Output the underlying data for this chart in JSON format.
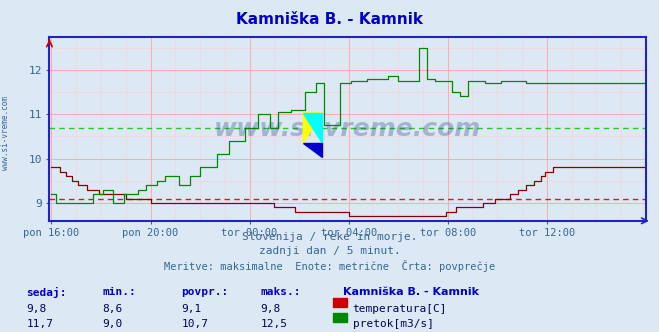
{
  "title": "Kamniška B. - Kamnik",
  "title_color": "#0000cc",
  "bg_color": "#dce9f5",
  "plot_bg_color": "#dce9f5",
  "grid_color_major": "#ffaaaa",
  "grid_color_minor": "#ffcccc",
  "axis_color": "#2222cc",
  "tick_color": "#336699",
  "temp_color": "#880000",
  "flow_color": "#008800",
  "temp_avg_line": 9.1,
  "flow_avg_line": 10.7,
  "temp_avg_color": "#cc2222",
  "flow_avg_color": "#22cc22",
  "x_tick_labels": [
    "pon 16:00",
    "pon 20:00",
    "tor 00:00",
    "tor 04:00",
    "tor 08:00",
    "tor 12:00"
  ],
  "x_tick_positions": [
    0,
    48,
    96,
    144,
    192,
    240
  ],
  "y_left_min": 8.6,
  "y_left_max": 12.75,
  "y_ticks": [
    9,
    10,
    11,
    12
  ],
  "n_points": 288,
  "subtitle1": "Slovenija / reke in morje.",
  "subtitle2": "zadnji dan / 5 minut.",
  "subtitle3": "Meritve: maksimalne  Enote: metrične  Črta: povprečje",
  "subtitle_color": "#336699",
  "table_headers": [
    "sedaj:",
    "min.:",
    "povpr.:",
    "maks.:"
  ],
  "table_header_color": "#0000cc",
  "table_row1": [
    "9,8",
    "8,6",
    "9,1",
    "9,8"
  ],
  "table_row2": [
    "11,7",
    "9,0",
    "10,7",
    "12,5"
  ],
  "table_color": "#000066",
  "station_label": "Kamniška B. - Kamnik",
  "legend_label1": "temperatura[C]",
  "legend_label2": "pretok[m3/s]",
  "watermark": "www.si-vreme.com",
  "watermark_color": "#1a3a8a",
  "left_label": "www.si-vreme.com",
  "left_label_color": "#336699",
  "temp_data": [
    9.8,
    9.8,
    9.8,
    9.8,
    9.7,
    9.7,
    9.7,
    9.6,
    9.6,
    9.6,
    9.5,
    9.5,
    9.5,
    9.4,
    9.4,
    9.4,
    9.4,
    9.3,
    9.3,
    9.3,
    9.3,
    9.3,
    9.3,
    9.2,
    9.2,
    9.2,
    9.2,
    9.2,
    9.2,
    9.2,
    9.2,
    9.2,
    9.2,
    9.2,
    9.2,
    9.2,
    9.1,
    9.1,
    9.1,
    9.1,
    9.1,
    9.1,
    9.1,
    9.1,
    9.1,
    9.1,
    9.1,
    9.1,
    9.0,
    9.0,
    9.0,
    9.0,
    9.0,
    9.0,
    9.0,
    9.0,
    9.0,
    9.0,
    9.0,
    9.0,
    9.0,
    9.0,
    9.0,
    9.0,
    9.0,
    9.0,
    9.0,
    9.0,
    9.0,
    9.0,
    9.0,
    9.0,
    9.0,
    9.0,
    9.0,
    9.0,
    9.0,
    9.0,
    9.0,
    9.0,
    9.0,
    9.0,
    9.0,
    9.0,
    9.0,
    9.0,
    9.0,
    9.0,
    9.0,
    9.0,
    9.0,
    9.0,
    9.0,
    9.0,
    9.0,
    9.0,
    9.0,
    9.0,
    9.0,
    9.0,
    9.0,
    9.0,
    9.0,
    9.0,
    9.0,
    9.0,
    9.0,
    9.0,
    8.9,
    8.9,
    8.9,
    8.9,
    8.9,
    8.9,
    8.9,
    8.9,
    8.9,
    8.9,
    8.8,
    8.8,
    8.8,
    8.8,
    8.8,
    8.8,
    8.8,
    8.8,
    8.8,
    8.8,
    8.8,
    8.8,
    8.8,
    8.8,
    8.8,
    8.8,
    8.8,
    8.8,
    8.8,
    8.8,
    8.8,
    8.8,
    8.8,
    8.8,
    8.8,
    8.8,
    8.7,
    8.7,
    8.7,
    8.7,
    8.7,
    8.7,
    8.7,
    8.7,
    8.7,
    8.7,
    8.7,
    8.7,
    8.7,
    8.7,
    8.7,
    8.7,
    8.7,
    8.7,
    8.7,
    8.7,
    8.7,
    8.7,
    8.7,
    8.7,
    8.7,
    8.7,
    8.7,
    8.7,
    8.7,
    8.7,
    8.7,
    8.7,
    8.7,
    8.7,
    8.7,
    8.7,
    8.7,
    8.7,
    8.7,
    8.7,
    8.7,
    8.7,
    8.7,
    8.7,
    8.7,
    8.7,
    8.7,
    8.8,
    8.8,
    8.8,
    8.8,
    8.8,
    8.9,
    8.9,
    8.9,
    8.9,
    8.9,
    8.9,
    8.9,
    8.9,
    8.9,
    8.9,
    8.9,
    8.9,
    8.9,
    9.0,
    9.0,
    9.0,
    9.0,
    9.0,
    9.0,
    9.1,
    9.1,
    9.1,
    9.1,
    9.1,
    9.1,
    9.1,
    9.2,
    9.2,
    9.2,
    9.2,
    9.3,
    9.3,
    9.3,
    9.3,
    9.4,
    9.4,
    9.4,
    9.4,
    9.5,
    9.5,
    9.5,
    9.6,
    9.6,
    9.7,
    9.7,
    9.7,
    9.7,
    9.8,
    9.8,
    9.8,
    9.8,
    9.8,
    9.8,
    9.8,
    9.8,
    9.8,
    9.8,
    9.8,
    9.8,
    9.8,
    9.8,
    9.8,
    9.8,
    9.8,
    9.8,
    9.8,
    9.8,
    9.8,
    9.8,
    9.8,
    9.8,
    9.8,
    9.8,
    9.8,
    9.8,
    9.8,
    9.8,
    9.8,
    9.8,
    9.8,
    9.8,
    9.8,
    9.8,
    9.8,
    9.8,
    9.8,
    9.8,
    9.8,
    9.8,
    9.8,
    9.8,
    9.8
  ],
  "flow_data": [
    9.2,
    9.2,
    9.0,
    9.0,
    9.0,
    9.0,
    9.0,
    9.0,
    9.0,
    9.0,
    9.0,
    9.0,
    9.0,
    9.0,
    9.0,
    9.0,
    9.0,
    9.0,
    9.0,
    9.0,
    9.2,
    9.2,
    9.2,
    9.2,
    9.2,
    9.3,
    9.3,
    9.3,
    9.3,
    9.3,
    9.0,
    9.0,
    9.0,
    9.0,
    9.0,
    9.2,
    9.2,
    9.2,
    9.2,
    9.2,
    9.2,
    9.2,
    9.3,
    9.3,
    9.3,
    9.3,
    9.4,
    9.4,
    9.4,
    9.4,
    9.4,
    9.5,
    9.5,
    9.5,
    9.5,
    9.6,
    9.6,
    9.6,
    9.6,
    9.6,
    9.6,
    9.6,
    9.4,
    9.4,
    9.4,
    9.4,
    9.4,
    9.6,
    9.6,
    9.6,
    9.6,
    9.6,
    9.8,
    9.8,
    9.8,
    9.8,
    9.8,
    9.8,
    9.8,
    9.8,
    10.1,
    10.1,
    10.1,
    10.1,
    10.1,
    10.1,
    10.4,
    10.4,
    10.4,
    10.4,
    10.4,
    10.4,
    10.4,
    10.4,
    10.7,
    10.7,
    10.7,
    10.7,
    10.7,
    10.7,
    11.0,
    11.0,
    11.0,
    11.0,
    11.0,
    11.0,
    10.7,
    10.7,
    10.7,
    10.7,
    11.05,
    11.05,
    11.05,
    11.05,
    11.05,
    11.05,
    11.1,
    11.1,
    11.1,
    11.1,
    11.1,
    11.1,
    11.1,
    11.5,
    11.5,
    11.5,
    11.5,
    11.5,
    11.7,
    11.7,
    11.7,
    11.7,
    10.75,
    10.75,
    10.75,
    10.75,
    10.75,
    10.75,
    10.75,
    10.75,
    11.7,
    11.7,
    11.7,
    11.7,
    11.7,
    11.75,
    11.75,
    11.75,
    11.75,
    11.75,
    11.75,
    11.75,
    11.75,
    11.8,
    11.8,
    11.8,
    11.8,
    11.8,
    11.8,
    11.8,
    11.8,
    11.8,
    11.8,
    11.85,
    11.85,
    11.85,
    11.85,
    11.85,
    11.75,
    11.75,
    11.75,
    11.75,
    11.75,
    11.75,
    11.75,
    11.75,
    11.75,
    11.75,
    12.5,
    12.5,
    12.5,
    12.5,
    11.8,
    11.8,
    11.8,
    11.8,
    11.75,
    11.75,
    11.75,
    11.75,
    11.75,
    11.75,
    11.75,
    11.75,
    11.5,
    11.5,
    11.5,
    11.5,
    11.4,
    11.4,
    11.4,
    11.4,
    11.75,
    11.75,
    11.75,
    11.75,
    11.75,
    11.75,
    11.75,
    11.75,
    11.7,
    11.7,
    11.7,
    11.7,
    11.7,
    11.7,
    11.7,
    11.7,
    11.75,
    11.75,
    11.75,
    11.75,
    11.75,
    11.75,
    11.75,
    11.75,
    11.75,
    11.75,
    11.75,
    11.75,
    11.7,
    11.7,
    11.7,
    11.7,
    11.7,
    11.7,
    11.7,
    11.7,
    11.7,
    11.7,
    11.7,
    11.7,
    11.7,
    11.7,
    11.7,
    11.7,
    11.7,
    11.7,
    11.7,
    11.7,
    11.7,
    11.7,
    11.7,
    11.7,
    11.7,
    11.7,
    11.7,
    11.7,
    11.7,
    11.7,
    11.7,
    11.7,
    11.7,
    11.7,
    11.7,
    11.7,
    11.7,
    11.7,
    11.7,
    11.7,
    11.7,
    11.7,
    11.7,
    11.7,
    11.7,
    11.7,
    11.7,
    11.7,
    11.7,
    11.7,
    11.7,
    11.7,
    11.7,
    11.7,
    11.7,
    11.7,
    11.7,
    11.7
  ]
}
